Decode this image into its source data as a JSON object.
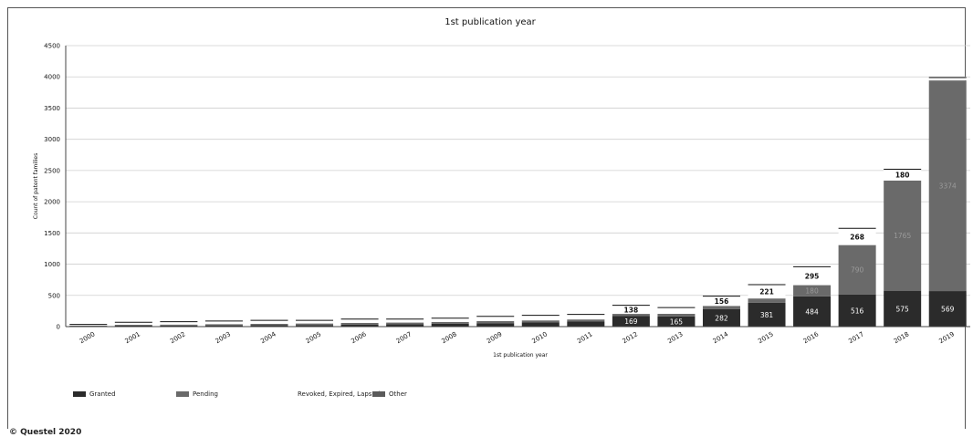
{
  "chart_data": {
    "type": "bar",
    "stacked": true,
    "title": "1st publication year",
    "xlabel": "1st publication year",
    "ylabel": "Count of patent families",
    "ylim": [
      0,
      4500
    ],
    "yticks": [
      0,
      500,
      1000,
      1500,
      2000,
      2500,
      3000,
      3500,
      4000,
      4500
    ],
    "grid": true,
    "legend_position": "bottom",
    "categories": [
      "2000",
      "2001",
      "2002",
      "2003",
      "2004",
      "2005",
      "2006",
      "2007",
      "2008",
      "2009",
      "2010",
      "2011",
      "2012",
      "2013",
      "2014",
      "2015",
      "2016",
      "2017",
      "2018",
      "2019"
    ],
    "series": [
      {
        "name": "Granted",
        "color": "#2b2b2b",
        "values": [
          10,
          15,
          18,
          20,
          25,
          25,
          30,
          40,
          45,
          55,
          70,
          80,
          169,
          165,
          282,
          381,
          484,
          516,
          575,
          569
        ],
        "labels": [
          null,
          null,
          null,
          null,
          null,
          null,
          null,
          null,
          null,
          null,
          null,
          null,
          "169",
          "165",
          "282",
          "381",
          "484",
          "516",
          "575",
          "569"
        ]
      },
      {
        "name": "Pending",
        "color": "#6a6a6a",
        "values": [
          5,
          15,
          15,
          20,
          20,
          25,
          30,
          25,
          30,
          35,
          30,
          35,
          35,
          40,
          50,
          70,
          180,
          790,
          1765,
          3374
        ],
        "labels": [
          null,
          null,
          null,
          null,
          null,
          null,
          null,
          null,
          null,
          null,
          null,
          null,
          null,
          null,
          null,
          null,
          "180",
          "790",
          "1765",
          "3374"
        ]
      },
      {
        "name": "Revoked, Expired, Lapsed",
        "color": "#ffffff",
        "values": [
          20,
          40,
          45,
          50,
          55,
          50,
          60,
          55,
          60,
          75,
          80,
          80,
          138,
          100,
          156,
          221,
          295,
          268,
          180,
          45
        ],
        "labels": [
          null,
          null,
          null,
          null,
          null,
          null,
          null,
          null,
          null,
          null,
          null,
          null,
          "138",
          null,
          "156",
          "221",
          "295",
          "268",
          "180",
          null
        ]
      },
      {
        "name": "Other",
        "color": "#5a5a5a",
        "values": [
          0,
          0,
          0,
          0,
          0,
          0,
          0,
          0,
          0,
          0,
          0,
          0,
          0,
          0,
          0,
          0,
          0,
          0,
          0,
          0
        ],
        "labels": []
      }
    ]
  },
  "copyright": "© Questel 2020"
}
